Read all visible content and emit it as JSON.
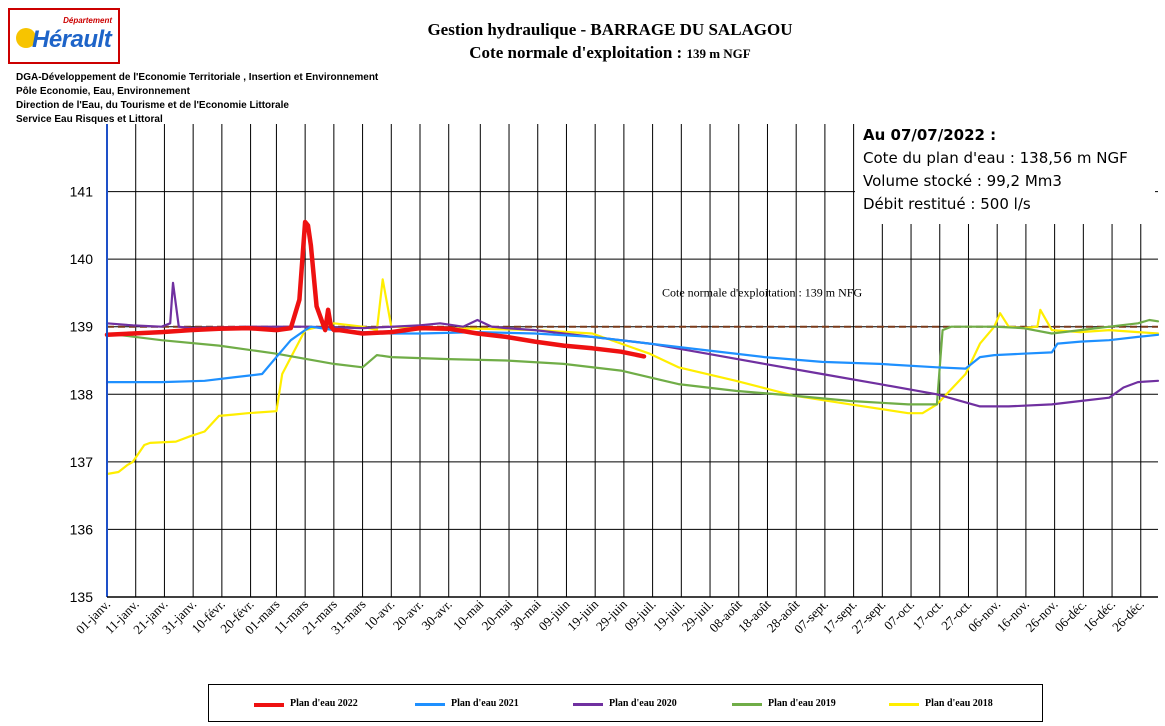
{
  "header": {
    "logo_small": "Département",
    "logo_name": "Hérault",
    "title_line1": "Gestion hydraulique - BARRAGE DU SALAGOU",
    "title_line2_prefix": "Cote normale d'exploitation : ",
    "title_line2_value": "139 m NGF",
    "org_lines": [
      "DGA-Développement de l'Economie Territoriale , Insertion et Environnement",
      "Pôle Economie, Eau, Environnement",
      "Direction de l'Eau, du Tourisme et de l'Economie Littorale",
      "Service Eau Risques et Littoral"
    ]
  },
  "infobox": {
    "heading": "Au 07/07/2022 :",
    "line1": "Cote du plan d'eau : 138,56 m NGF",
    "line2": "Volume stocké : 99,2 Mm3",
    "line3": "Débit restitué : 500 l/s"
  },
  "chart_data": {
    "type": "line",
    "title": "Gestion hydraulique - BARRAGE DU SALAGOU",
    "subtitle": "Cote normale d'exploitation : 139 m NGF",
    "ylim": [
      135,
      142
    ],
    "yticks": [
      135,
      136,
      137,
      138,
      139,
      140,
      141
    ],
    "xlim": [
      1,
      367
    ],
    "xtick_labels": [
      "01-janv.",
      "11-janv.",
      "21-janv.",
      "31-janv.",
      "10-févr.",
      "20-févr.",
      "01-mars",
      "11-mars",
      "21-mars",
      "31-mars",
      "10-avr.",
      "20-avr.",
      "30-avr.",
      "10-mai",
      "20-mai",
      "30-mai",
      "09-juin",
      "19-juin",
      "29-juin",
      "09-juil.",
      "19-juil.",
      "29-juil.",
      "08-août",
      "18-août",
      "28-août",
      "07-sept.",
      "17-sept.",
      "27-sept.",
      "07-oct.",
      "17-oct.",
      "27-oct.",
      "06-nov.",
      "16-nov.",
      "26-nov.",
      "06-déc.",
      "16-déc.",
      "26-déc."
    ],
    "xtick_days": [
      1,
      11,
      21,
      31,
      41,
      51,
      60,
      70,
      80,
      90,
      100,
      110,
      120,
      131,
      141,
      151,
      161,
      171,
      181,
      191,
      201,
      211,
      221,
      231,
      241,
      251,
      261,
      271,
      281,
      291,
      301,
      311,
      321,
      331,
      341,
      351,
      361
    ],
    "grid": "vertical",
    "reference_line": {
      "value": 139,
      "label": "Cote normale d'exploitation : 139 m NFG",
      "color": "#7a3a1a"
    },
    "legend_position": "bottom",
    "series": [
      {
        "name": "Plan d'eau 2022",
        "color": "#ee1111",
        "x": [
          1,
          10,
          20,
          30,
          40,
          50,
          60,
          65,
          68,
          70,
          71,
          72,
          74,
          77,
          78,
          79,
          80,
          82,
          85,
          90,
          100,
          110,
          120,
          130,
          140,
          150,
          160,
          170,
          180,
          188
        ],
        "y": [
          138.88,
          138.9,
          138.92,
          138.95,
          138.97,
          138.98,
          138.95,
          138.98,
          139.4,
          140.55,
          140.5,
          140.2,
          139.3,
          138.95,
          139.25,
          139.0,
          138.95,
          138.95,
          138.93,
          138.9,
          138.92,
          138.98,
          138.97,
          138.9,
          138.85,
          138.78,
          138.72,
          138.68,
          138.63,
          138.56
        ]
      },
      {
        "name": "Plan d'eau 2021",
        "color": "#1e90ff",
        "x": [
          1,
          20,
          35,
          45,
          55,
          60,
          65,
          70,
          72,
          80,
          90,
          100,
          110,
          130,
          150,
          170,
          190,
          210,
          230,
          250,
          270,
          290,
          300,
          305,
          310,
          320,
          330,
          332,
          340,
          350,
          360,
          367
        ],
        "y": [
          138.18,
          138.18,
          138.2,
          138.25,
          138.3,
          138.55,
          138.8,
          138.95,
          139.0,
          138.95,
          138.92,
          138.9,
          138.9,
          138.92,
          138.9,
          138.85,
          138.75,
          138.65,
          138.55,
          138.48,
          138.45,
          138.4,
          138.38,
          138.55,
          138.58,
          138.6,
          138.62,
          138.75,
          138.78,
          138.8,
          138.85,
          138.88
        ]
      },
      {
        "name": "Plan d'eau 2020",
        "color": "#7030a0",
        "x": [
          1,
          10,
          20,
          23,
          24,
          26,
          30,
          50,
          70,
          90,
          110,
          117,
          125,
          130,
          135,
          140,
          150,
          170,
          190,
          210,
          230,
          250,
          270,
          290,
          305,
          315,
          330,
          340,
          350,
          355,
          360,
          367
        ],
        "y": [
          139.05,
          139.02,
          139.0,
          139.05,
          139.65,
          139.0,
          138.98,
          139.0,
          139.0,
          138.98,
          139.02,
          139.05,
          139.0,
          139.1,
          139.0,
          138.98,
          138.95,
          138.85,
          138.75,
          138.6,
          138.45,
          138.3,
          138.15,
          138.0,
          137.82,
          137.82,
          137.85,
          137.9,
          137.95,
          138.1,
          138.18,
          138.2
        ]
      },
      {
        "name": "Plan d'eau 2019",
        "color": "#70ad47",
        "x": [
          1,
          20,
          40,
          60,
          80,
          90,
          95,
          100,
          120,
          140,
          160,
          180,
          200,
          220,
          240,
          260,
          280,
          290,
          292,
          295,
          310,
          320,
          330,
          340,
          350,
          360,
          364,
          367
        ],
        "y": [
          138.9,
          138.8,
          138.72,
          138.6,
          138.45,
          138.4,
          138.58,
          138.55,
          138.52,
          138.5,
          138.45,
          138.35,
          138.15,
          138.05,
          137.98,
          137.9,
          137.85,
          137.85,
          138.95,
          139.0,
          139.0,
          138.98,
          138.9,
          138.95,
          139.0,
          139.05,
          139.1,
          139.08
        ]
      },
      {
        "name": "Plan d'eau 2018",
        "color": "#ffee00",
        "x": [
          1,
          5,
          8,
          10,
          14,
          16,
          25,
          30,
          35,
          40,
          45,
          50,
          60,
          62,
          70,
          80,
          90,
          95,
          97,
          100,
          110,
          130,
          150,
          170,
          190,
          200,
          220,
          240,
          260,
          280,
          285,
          290,
          300,
          305,
          310,
          312,
          315,
          320,
          325,
          326,
          330,
          340,
          350,
          360,
          367
        ],
        "y": [
          136.82,
          136.85,
          136.95,
          137.0,
          137.25,
          137.28,
          137.3,
          137.38,
          137.45,
          137.68,
          137.7,
          137.72,
          137.75,
          138.3,
          138.95,
          139.05,
          139.0,
          138.95,
          139.7,
          139.0,
          138.98,
          138.97,
          138.95,
          138.9,
          138.6,
          138.4,
          138.2,
          137.98,
          137.85,
          137.72,
          137.72,
          137.85,
          138.3,
          138.75,
          139.0,
          139.2,
          139.0,
          138.98,
          139.0,
          139.25,
          138.95,
          138.92,
          138.95,
          138.92,
          138.9
        ]
      }
    ]
  }
}
